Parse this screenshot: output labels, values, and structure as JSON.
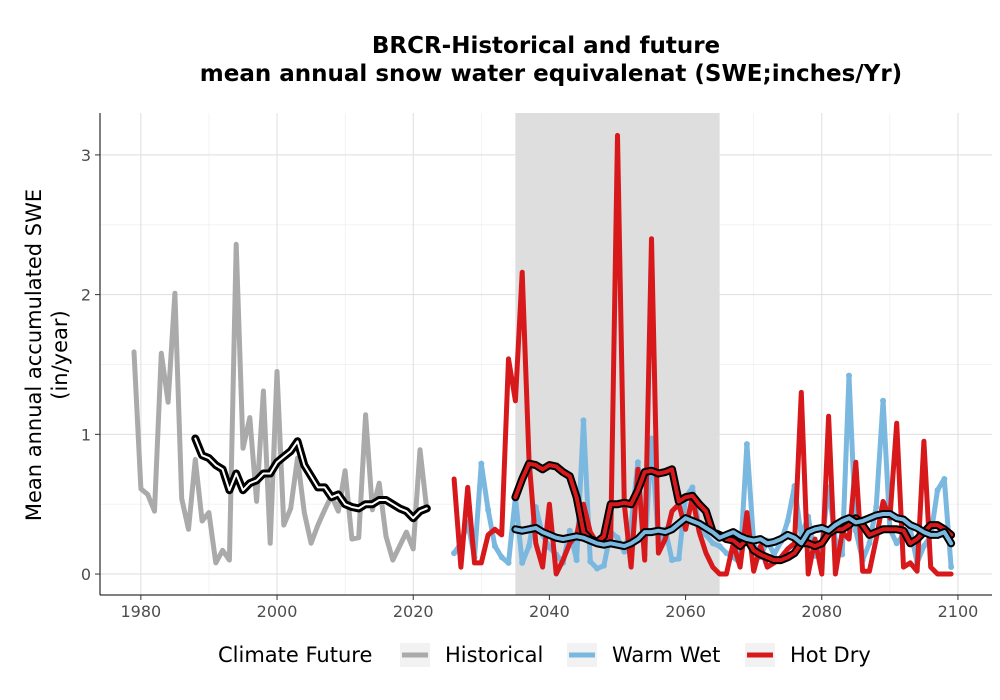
{
  "chart_data": {
    "type": "line",
    "title": [
      "BRCR-Historical and future",
      "mean annual snow water equivalenat (SWE;inches/Yr)"
    ],
    "xlabel": "",
    "ylabel": [
      "Mean annual accumulated SWE",
      "(in/year)"
    ],
    "xlim": [
      1974,
      2105
    ],
    "ylim": [
      -0.15,
      3.3
    ],
    "xticks": [
      1980,
      2000,
      2020,
      2040,
      2060,
      2080,
      2100
    ],
    "yticks": [
      0,
      1,
      2,
      3
    ],
    "grid": true,
    "shaded_period": [
      2035,
      2065
    ],
    "legend": {
      "title": "Climate Future",
      "position": "bottom",
      "entries": [
        "Historical",
        "Warm Wet",
        "Hot Dry"
      ]
    },
    "colors": {
      "Historical": "#aaaaaa",
      "Warm Wet": "#7ab8e0",
      "Hot Dry": "#d7191c",
      "shade": "#dcdcdc",
      "smooth": "#000000"
    },
    "series": [
      {
        "name": "Historical",
        "x": [
          1979,
          1980,
          1981,
          1982,
          1983,
          1984,
          1985,
          1986,
          1987,
          1988,
          1989,
          1990,
          1991,
          1992,
          1993,
          1994,
          1995,
          1996,
          1997,
          1998,
          1999,
          2000,
          2001,
          2002,
          2003,
          2004,
          2005,
          2006,
          2007,
          2008,
          2009,
          2010,
          2011,
          2012,
          2013,
          2014,
          2015,
          2016,
          2017,
          2018,
          2019,
          2020,
          2021,
          2022
        ],
        "values": [
          1.59,
          0.61,
          0.57,
          0.45,
          1.58,
          1.23,
          2.01,
          0.54,
          0.32,
          0.82,
          0.38,
          0.44,
          0.08,
          0.17,
          0.1,
          2.36,
          0.9,
          1.12,
          0.52,
          1.31,
          0.22,
          1.45,
          0.35,
          0.47,
          0.83,
          0.44,
          0.22,
          0.35,
          0.46,
          0.56,
          0.45,
          0.74,
          0.25,
          0.26,
          1.14,
          0.46,
          0.65,
          0.27,
          0.1,
          0.2,
          0.3,
          0.18,
          0.89,
          0.46
        ]
      },
      {
        "name": "Warm Wet",
        "x": [
          2026,
          2027,
          2028,
          2029,
          2030,
          2031,
          2032,
          2033,
          2034,
          2035,
          2036,
          2037,
          2038,
          2039,
          2040,
          2041,
          2042,
          2043,
          2044,
          2045,
          2046,
          2047,
          2048,
          2049,
          2050,
          2051,
          2052,
          2053,
          2054,
          2055,
          2056,
          2057,
          2058,
          2059,
          2060,
          2061,
          2062,
          2063,
          2064,
          2065,
          2066,
          2067,
          2068,
          2069,
          2070,
          2071,
          2072,
          2073,
          2074,
          2075,
          2076,
          2077,
          2078,
          2079,
          2080,
          2081,
          2082,
          2083,
          2084,
          2085,
          2086,
          2087,
          2088,
          2089,
          2090,
          2091,
          2092,
          2093,
          2094,
          2095,
          2096,
          2097,
          2098,
          2099
        ],
        "values": [
          0.15,
          0.22,
          0.37,
          0.12,
          0.79,
          0.46,
          0.2,
          0.12,
          0.08,
          0.55,
          0.08,
          0.2,
          0.48,
          0.28,
          0.19,
          0.14,
          0.08,
          0.31,
          0.1,
          1.1,
          0.09,
          0.04,
          0.06,
          0.3,
          0.26,
          0.16,
          0.35,
          0.8,
          0.14,
          0.97,
          0.22,
          0.32,
          0.1,
          0.11,
          0.55,
          0.62,
          0.33,
          0.28,
          0.22,
          0.2,
          0.15,
          0.12,
          0.08,
          0.93,
          0.22,
          0.12,
          0.24,
          0.14,
          0.23,
          0.38,
          0.63,
          0.27,
          0.41,
          0.13,
          0.22,
          0.62,
          0.24,
          0.14,
          1.42,
          0.31,
          0.1,
          0.22,
          0.48,
          1.24,
          0.32,
          0.22,
          0.28,
          0.32,
          0.08,
          0.2,
          0.27,
          0.6,
          0.68,
          0.05
        ]
      },
      {
        "name": "Hot Dry",
        "x": [
          2026,
          2027,
          2028,
          2029,
          2030,
          2031,
          2032,
          2033,
          2034,
          2035,
          2036,
          2037,
          2038,
          2039,
          2040,
          2041,
          2042,
          2043,
          2044,
          2045,
          2046,
          2047,
          2048,
          2049,
          2050,
          2051,
          2052,
          2053,
          2054,
          2055,
          2056,
          2057,
          2058,
          2059,
          2060,
          2061,
          2062,
          2063,
          2064,
          2065,
          2066,
          2067,
          2068,
          2069,
          2070,
          2071,
          2072,
          2073,
          2074,
          2075,
          2076,
          2077,
          2078,
          2079,
          2080,
          2081,
          2082,
          2083,
          2084,
          2085,
          2086,
          2087,
          2088,
          2089,
          2090,
          2091,
          2092,
          2093,
          2094,
          2095,
          2096,
          2097,
          2098,
          2099
        ],
        "values": [
          0.68,
          0.05,
          0.62,
          0.08,
          0.08,
          0.28,
          0.32,
          0.28,
          1.54,
          1.24,
          2.16,
          0.82,
          0.22,
          0.05,
          0.5,
          0,
          0.1,
          0.22,
          0.28,
          0.5,
          0.3,
          0.22,
          0.25,
          0.25,
          3.14,
          0.5,
          0.05,
          0.75,
          0.1,
          2.4,
          0.15,
          0.25,
          0.45,
          0.5,
          0.32,
          0.55,
          0.3,
          0.15,
          0.05,
          0,
          0,
          0.22,
          0.05,
          0.44,
          0.02,
          0.2,
          0.05,
          0.08,
          0.12,
          0.18,
          0.22,
          1.3,
          0,
          0.25,
          0,
          1.13,
          0,
          0.3,
          0.25,
          0.8,
          0.02,
          0.02,
          0.25,
          0.52,
          0.4,
          1.08,
          0.05,
          0.08,
          0.02,
          0.95,
          0.05,
          0,
          0,
          0
        ]
      }
    ],
    "smoothed": [
      {
        "name": "Historical",
        "x": [
          1988,
          1989,
          1990,
          1991,
          1992,
          1993,
          1994,
          1995,
          1996,
          1997,
          1998,
          1999,
          2000,
          2001,
          2002,
          2003,
          2004,
          2005,
          2006,
          2007,
          2008,
          2009,
          2010,
          2011,
          2012,
          2013,
          2014,
          2015,
          2016,
          2017,
          2018,
          2019,
          2020,
          2021,
          2022
        ],
        "values": [
          0.97,
          0.85,
          0.83,
          0.78,
          0.75,
          0.6,
          0.72,
          0.6,
          0.65,
          0.67,
          0.72,
          0.72,
          0.8,
          0.84,
          0.88,
          0.95,
          0.78,
          0.7,
          0.62,
          0.62,
          0.55,
          0.57,
          0.5,
          0.48,
          0.47,
          0.5,
          0.5,
          0.53,
          0.53,
          0.5,
          0.47,
          0.45,
          0.4,
          0.45,
          0.47
        ]
      },
      {
        "name": "Hot Dry",
        "x": [
          2035,
          2036,
          2037,
          2038,
          2039,
          2040,
          2041,
          2042,
          2043,
          2044,
          2045,
          2046,
          2047,
          2048,
          2049,
          2050,
          2051,
          2052,
          2053,
          2054,
          2055,
          2056,
          2057,
          2058,
          2059,
          2060,
          2061,
          2062,
          2063,
          2064,
          2065,
          2066,
          2067,
          2068,
          2069,
          2070,
          2071,
          2072,
          2073,
          2074,
          2075,
          2076,
          2077,
          2078,
          2079,
          2080,
          2081,
          2082,
          2083,
          2084,
          2085,
          2086,
          2087,
          2088,
          2089,
          2090,
          2091,
          2092,
          2093,
          2094,
          2095,
          2096,
          2097,
          2098,
          2099
        ],
        "values": [
          0.55,
          0.68,
          0.79,
          0.78,
          0.75,
          0.78,
          0.77,
          0.73,
          0.7,
          0.55,
          0.3,
          0.25,
          0.23,
          0.27,
          0.5,
          0.5,
          0.51,
          0.5,
          0.6,
          0.73,
          0.74,
          0.72,
          0.73,
          0.75,
          0.52,
          0.55,
          0.56,
          0.5,
          0.45,
          0.3,
          0.28,
          0.25,
          0.24,
          0.2,
          0.25,
          0.17,
          0.14,
          0.12,
          0.1,
          0.1,
          0.12,
          0.15,
          0.22,
          0.22,
          0.2,
          0.22,
          0.29,
          0.32,
          0.32,
          0.35,
          0.4,
          0.35,
          0.28,
          0.3,
          0.32,
          0.32,
          0.32,
          0.31,
          0.22,
          0.25,
          0.3,
          0.35,
          0.35,
          0.32,
          0.28
        ]
      },
      {
        "name": "Warm Wet",
        "x": [
          2035,
          2036,
          2037,
          2038,
          2039,
          2040,
          2041,
          2042,
          2043,
          2044,
          2045,
          2046,
          2047,
          2048,
          2049,
          2050,
          2051,
          2052,
          2053,
          2054,
          2055,
          2056,
          2057,
          2058,
          2059,
          2060,
          2061,
          2062,
          2063,
          2064,
          2065,
          2066,
          2067,
          2068,
          2069,
          2070,
          2071,
          2072,
          2073,
          2074,
          2075,
          2076,
          2077,
          2078,
          2079,
          2080,
          2081,
          2082,
          2083,
          2084,
          2085,
          2086,
          2087,
          2088,
          2089,
          2090,
          2091,
          2092,
          2093,
          2094,
          2095,
          2096,
          2097,
          2098,
          2099
        ],
        "values": [
          0.32,
          0.31,
          0.32,
          0.33,
          0.3,
          0.28,
          0.26,
          0.25,
          0.26,
          0.27,
          0.26,
          0.24,
          0.22,
          0.21,
          0.22,
          0.21,
          0.2,
          0.22,
          0.25,
          0.3,
          0.3,
          0.31,
          0.3,
          0.32,
          0.36,
          0.4,
          0.38,
          0.36,
          0.33,
          0.3,
          0.26,
          0.28,
          0.3,
          0.27,
          0.25,
          0.24,
          0.25,
          0.22,
          0.23,
          0.25,
          0.28,
          0.26,
          0.22,
          0.3,
          0.32,
          0.33,
          0.31,
          0.35,
          0.38,
          0.4,
          0.37,
          0.38,
          0.4,
          0.42,
          0.43,
          0.43,
          0.4,
          0.39,
          0.35,
          0.33,
          0.3,
          0.28,
          0.28,
          0.3,
          0.22
        ]
      }
    ]
  }
}
